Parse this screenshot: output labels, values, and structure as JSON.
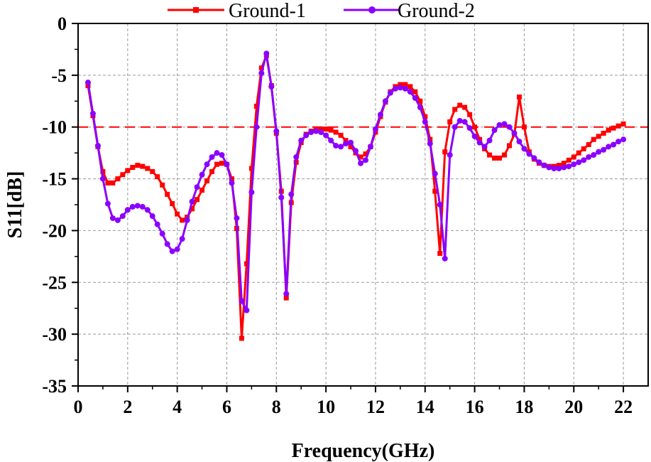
{
  "chart_data": {
    "type": "line",
    "title": "",
    "xlabel": "Frequency(GHz)",
    "ylabel": "S11[dB]",
    "xlim": [
      0,
      23
    ],
    "ylim": [
      -35,
      0
    ],
    "xticks": [
      0,
      2,
      4,
      6,
      8,
      10,
      12,
      14,
      16,
      18,
      20,
      22
    ],
    "yticks": [
      0,
      -5,
      -10,
      -15,
      -20,
      -25,
      -30,
      -35
    ],
    "xtick_labels": [
      "0",
      "2",
      "4",
      "6",
      "8",
      "10",
      "12",
      "14",
      "16",
      "18",
      "20",
      "22"
    ],
    "ytick_labels": [
      "0",
      "-5",
      "-10",
      "-15",
      "-20",
      "-25",
      "-30",
      "-35"
    ],
    "grid": true,
    "legend_position": "top",
    "reference_line": {
      "y": -10,
      "color": "#ff0000",
      "style": "dashed"
    },
    "series": [
      {
        "name": "Ground-1",
        "color": "#ff0000",
        "marker": "square",
        "points": [
          [
            0.4,
            -6.0
          ],
          [
            0.6,
            -8.9
          ],
          [
            0.8,
            -11.9
          ],
          [
            1.0,
            -14.3
          ],
          [
            1.2,
            -15.4
          ],
          [
            1.4,
            -15.4
          ],
          [
            1.6,
            -15.0
          ],
          [
            1.8,
            -14.6
          ],
          [
            2.0,
            -14.2
          ],
          [
            2.2,
            -13.9
          ],
          [
            2.4,
            -13.7
          ],
          [
            2.6,
            -13.8
          ],
          [
            2.8,
            -14.0
          ],
          [
            3.0,
            -14.3
          ],
          [
            3.2,
            -14.8
          ],
          [
            3.4,
            -15.6
          ],
          [
            3.6,
            -16.5
          ],
          [
            3.8,
            -17.4
          ],
          [
            4.0,
            -18.4
          ],
          [
            4.2,
            -19.0
          ],
          [
            4.4,
            -18.7
          ],
          [
            4.6,
            -17.9
          ],
          [
            4.8,
            -17.0
          ],
          [
            5.0,
            -16.1
          ],
          [
            5.2,
            -15.2
          ],
          [
            5.4,
            -14.3
          ],
          [
            5.6,
            -13.6
          ],
          [
            5.8,
            -13.5
          ],
          [
            6.0,
            -13.6
          ],
          [
            6.2,
            -15.0
          ],
          [
            6.4,
            -19.8
          ],
          [
            6.6,
            -30.4
          ],
          [
            6.8,
            -23.2
          ],
          [
            7.0,
            -14.0
          ],
          [
            7.2,
            -8.0
          ],
          [
            7.4,
            -4.3
          ],
          [
            7.6,
            -3.1
          ],
          [
            7.8,
            -6.0
          ],
          [
            8.0,
            -10.6
          ],
          [
            8.2,
            -16.2
          ],
          [
            8.4,
            -26.5
          ],
          [
            8.6,
            -17.3
          ],
          [
            8.8,
            -13.4
          ],
          [
            9.0,
            -11.5
          ],
          [
            9.2,
            -10.7
          ],
          [
            9.4,
            -10.4
          ],
          [
            9.6,
            -10.3
          ],
          [
            9.8,
            -10.2
          ],
          [
            10.0,
            -10.2
          ],
          [
            10.2,
            -10.3
          ],
          [
            10.4,
            -10.5
          ],
          [
            10.6,
            -10.8
          ],
          [
            10.8,
            -11.3
          ],
          [
            11.0,
            -11.9
          ],
          [
            11.2,
            -12.5
          ],
          [
            11.4,
            -12.9
          ],
          [
            11.6,
            -12.6
          ],
          [
            11.8,
            -11.9
          ],
          [
            12.0,
            -10.5
          ],
          [
            12.2,
            -9.0
          ],
          [
            12.4,
            -7.6
          ],
          [
            12.6,
            -6.6
          ],
          [
            12.8,
            -6.1
          ],
          [
            13.0,
            -5.9
          ],
          [
            13.2,
            -5.9
          ],
          [
            13.4,
            -6.1
          ],
          [
            13.6,
            -6.6
          ],
          [
            13.8,
            -7.5
          ],
          [
            14.0,
            -9.0
          ],
          [
            14.2,
            -11.2
          ],
          [
            14.4,
            -16.2
          ],
          [
            14.6,
            -22.2
          ],
          [
            14.8,
            -12.4
          ],
          [
            15.0,
            -9.5
          ],
          [
            15.2,
            -8.3
          ],
          [
            15.4,
            -7.9
          ],
          [
            15.6,
            -8.1
          ],
          [
            15.8,
            -8.8
          ],
          [
            16.0,
            -10.0
          ],
          [
            16.2,
            -11.2
          ],
          [
            16.4,
            -12.1
          ],
          [
            16.6,
            -12.7
          ],
          [
            16.8,
            -13.0
          ],
          [
            17.0,
            -13.0
          ],
          [
            17.2,
            -12.7
          ],
          [
            17.4,
            -11.8
          ],
          [
            17.6,
            -10.7
          ],
          [
            17.8,
            -7.1
          ],
          [
            18.0,
            -10.0
          ],
          [
            18.2,
            -12.4
          ],
          [
            18.4,
            -13.1
          ],
          [
            18.6,
            -13.5
          ],
          [
            18.8,
            -13.7
          ],
          [
            19.0,
            -13.8
          ],
          [
            19.2,
            -13.8
          ],
          [
            19.4,
            -13.7
          ],
          [
            19.6,
            -13.5
          ],
          [
            19.8,
            -13.2
          ],
          [
            20.0,
            -12.9
          ],
          [
            20.2,
            -12.5
          ],
          [
            20.4,
            -12.1
          ],
          [
            20.6,
            -11.7
          ],
          [
            20.8,
            -11.2
          ],
          [
            21.0,
            -10.9
          ],
          [
            21.2,
            -10.6
          ],
          [
            21.4,
            -10.3
          ],
          [
            21.6,
            -10.1
          ],
          [
            21.8,
            -9.9
          ],
          [
            22.0,
            -9.7
          ]
        ]
      },
      {
        "name": "Ground-2",
        "color": "#8b00ff",
        "marker": "circle",
        "points": [
          [
            0.4,
            -5.7
          ],
          [
            0.6,
            -8.7
          ],
          [
            0.8,
            -11.8
          ],
          [
            1.0,
            -15.0
          ],
          [
            1.2,
            -17.4
          ],
          [
            1.4,
            -18.8
          ],
          [
            1.6,
            -19.0
          ],
          [
            1.8,
            -18.6
          ],
          [
            2.0,
            -18.0
          ],
          [
            2.2,
            -17.7
          ],
          [
            2.4,
            -17.6
          ],
          [
            2.6,
            -17.7
          ],
          [
            2.8,
            -18.0
          ],
          [
            3.0,
            -18.6
          ],
          [
            3.2,
            -19.4
          ],
          [
            3.4,
            -20.3
          ],
          [
            3.6,
            -21.3
          ],
          [
            3.8,
            -22.0
          ],
          [
            4.0,
            -21.8
          ],
          [
            4.2,
            -20.8
          ],
          [
            4.4,
            -19.0
          ],
          [
            4.6,
            -17.2
          ],
          [
            4.8,
            -15.8
          ],
          [
            5.0,
            -14.6
          ],
          [
            5.2,
            -13.6
          ],
          [
            5.4,
            -12.9
          ],
          [
            5.6,
            -12.5
          ],
          [
            5.8,
            -12.7
          ],
          [
            6.0,
            -13.6
          ],
          [
            6.2,
            -15.4
          ],
          [
            6.4,
            -18.8
          ],
          [
            6.6,
            -26.8
          ],
          [
            6.8,
            -27.7
          ],
          [
            7.0,
            -16.3
          ],
          [
            7.2,
            -10.0
          ],
          [
            7.4,
            -4.8
          ],
          [
            7.6,
            -2.9
          ],
          [
            7.8,
            -6.1
          ],
          [
            8.0,
            -10.4
          ],
          [
            8.2,
            -16.8
          ],
          [
            8.4,
            -26.1
          ],
          [
            8.6,
            -16.5
          ],
          [
            8.8,
            -12.9
          ],
          [
            9.0,
            -11.3
          ],
          [
            9.2,
            -10.8
          ],
          [
            9.4,
            -10.5
          ],
          [
            9.6,
            -10.4
          ],
          [
            9.8,
            -10.5
          ],
          [
            10.0,
            -10.8
          ],
          [
            10.2,
            -11.3
          ],
          [
            10.4,
            -11.8
          ],
          [
            10.6,
            -11.9
          ],
          [
            10.8,
            -11.6
          ],
          [
            11.0,
            -11.5
          ],
          [
            11.2,
            -12.3
          ],
          [
            11.4,
            -13.5
          ],
          [
            11.6,
            -13.2
          ],
          [
            11.8,
            -11.9
          ],
          [
            12.0,
            -10.2
          ],
          [
            12.2,
            -8.8
          ],
          [
            12.4,
            -7.5
          ],
          [
            12.6,
            -6.7
          ],
          [
            12.8,
            -6.3
          ],
          [
            13.0,
            -6.2
          ],
          [
            13.2,
            -6.3
          ],
          [
            13.4,
            -6.6
          ],
          [
            13.6,
            -7.2
          ],
          [
            13.8,
            -8.1
          ],
          [
            14.0,
            -9.5
          ],
          [
            14.2,
            -11.6
          ],
          [
            14.4,
            -14.5
          ],
          [
            14.6,
            -17.5
          ],
          [
            14.8,
            -22.7
          ],
          [
            15.0,
            -12.7
          ],
          [
            15.2,
            -10.0
          ],
          [
            15.4,
            -9.4
          ],
          [
            15.6,
            -9.5
          ],
          [
            15.8,
            -10.1
          ],
          [
            16.0,
            -10.9
          ],
          [
            16.2,
            -11.5
          ],
          [
            16.4,
            -11.9
          ],
          [
            16.6,
            -11.3
          ],
          [
            16.8,
            -10.3
          ],
          [
            17.0,
            -9.8
          ],
          [
            17.2,
            -9.7
          ],
          [
            17.4,
            -10.0
          ],
          [
            17.6,
            -10.6
          ],
          [
            17.8,
            -11.4
          ],
          [
            18.0,
            -12.1
          ],
          [
            18.2,
            -12.6
          ],
          [
            18.4,
            -13.0
          ],
          [
            18.6,
            -13.4
          ],
          [
            18.8,
            -13.7
          ],
          [
            19.0,
            -13.9
          ],
          [
            19.2,
            -14.0
          ],
          [
            19.4,
            -14.0
          ],
          [
            19.6,
            -13.9
          ],
          [
            19.8,
            -13.8
          ],
          [
            20.0,
            -13.6
          ],
          [
            20.2,
            -13.4
          ],
          [
            20.4,
            -13.2
          ],
          [
            20.6,
            -12.9
          ],
          [
            20.8,
            -12.7
          ],
          [
            21.0,
            -12.4
          ],
          [
            21.2,
            -12.2
          ],
          [
            21.4,
            -11.9
          ],
          [
            21.6,
            -11.7
          ],
          [
            21.8,
            -11.4
          ],
          [
            22.0,
            -11.2
          ]
        ]
      }
    ]
  }
}
